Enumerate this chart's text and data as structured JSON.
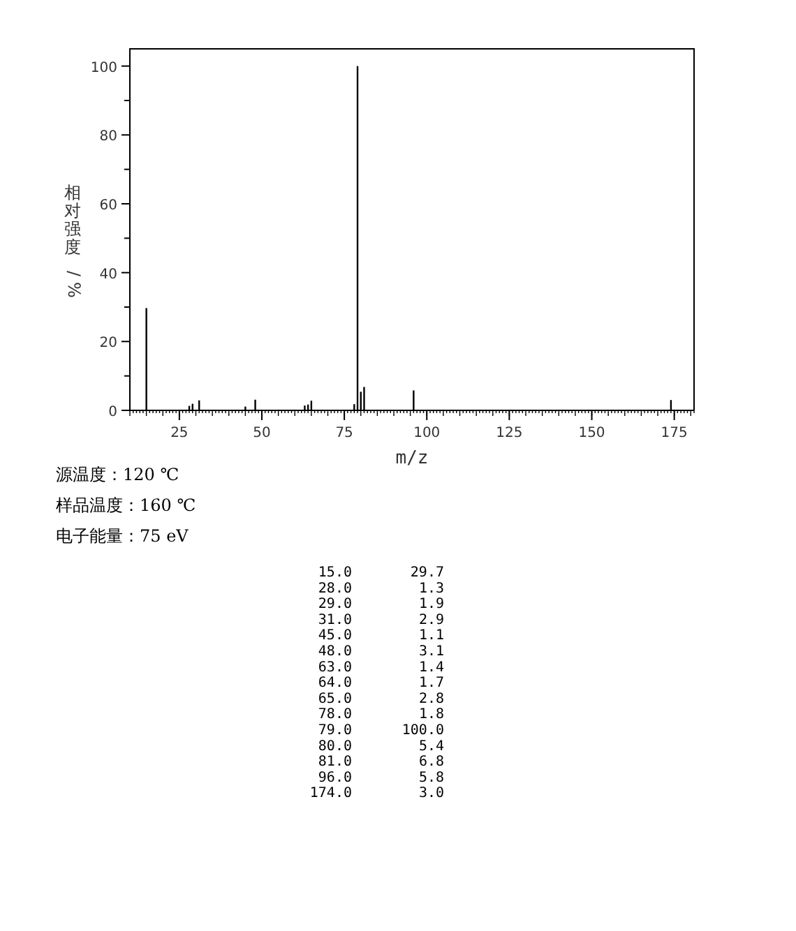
{
  "chart_data": {
    "type": "bar",
    "xlabel": "m/z",
    "ylabel": "相对强度/%",
    "x": [
      15,
      28,
      29,
      31,
      45,
      48,
      63,
      64,
      65,
      78,
      79,
      80,
      81,
      96,
      174
    ],
    "values": [
      29.7,
      1.3,
      1.9,
      2.9,
      1.1,
      3.1,
      1.4,
      1.7,
      2.8,
      1.8,
      100.0,
      5.4,
      6.8,
      5.8,
      3.0
    ],
    "color": "#000000",
    "xlim": [
      10,
      181
    ],
    "xticks": [
      25,
      50,
      75,
      100,
      125,
      150,
      175
    ],
    "ylim": [
      0,
      105
    ],
    "yticks": [
      0,
      20,
      40,
      60,
      80,
      100
    ],
    "grid": false,
    "annotations": [
      "源温度：120 ℃",
      "样品温度：160 ℃",
      "电子能量：75 eV",
      "15.0",
      "29.7",
      "28.0",
      "1.3",
      "29.0",
      "1.9",
      "31.0",
      "2.9",
      "45.0",
      "1.1",
      "48.0",
      "3.1",
      "63.0",
      "1.4",
      "64.0",
      "1.7",
      "65.0",
      "2.8",
      "78.0",
      "1.8",
      "79.0",
      "100.0",
      "80.0",
      "5.4",
      "81.0",
      "6.8",
      "96.0",
      "5.8",
      "174.0",
      "3.0"
    ]
  }
}
